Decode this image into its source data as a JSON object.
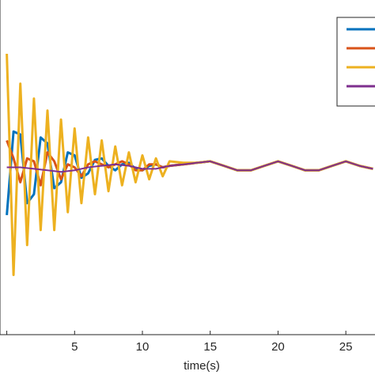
{
  "chart_data": {
    "type": "line",
    "title": "",
    "xlabel": "time(s)",
    "ylabel": "",
    "xlim": [
      -0.5,
      27.5
    ],
    "ylim": [
      -5.6,
      5.6
    ],
    "x_ticks": [
      0,
      5,
      10,
      15,
      20,
      25
    ],
    "x_tick_labels": [
      "",
      "5",
      "10",
      "15",
      "20",
      "25"
    ],
    "grid": false,
    "legend_placement": "top-right",
    "legend_entries": [
      "",
      "",
      "",
      ""
    ],
    "series": [
      {
        "color": "#0072BD",
        "x": [
          0,
          0.5,
          1,
          1.5,
          2,
          2.5,
          3,
          3.5,
          4,
          4.5,
          5,
          5.5,
          6,
          6.5,
          7,
          7.5,
          8,
          8.5,
          9,
          9.5,
          10,
          10.5,
          11,
          11.5,
          12,
          13,
          14,
          15,
          16,
          17,
          18,
          19,
          20,
          21,
          22,
          23,
          24,
          25,
          26,
          27
        ],
        "y": [
          -1.6,
          1.2,
          1.1,
          -1.2,
          -0.9,
          1.0,
          0.8,
          -0.7,
          -0.5,
          0.5,
          0.4,
          -0.35,
          -0.2,
          0.25,
          0.3,
          0.05,
          -0.1,
          0.1,
          0.15,
          -0.05,
          -0.1,
          0.05,
          0.1,
          0.0,
          0.05,
          0.1,
          0.15,
          0.2,
          0.05,
          -0.1,
          -0.1,
          0.05,
          0.2,
          0.05,
          -0.1,
          -0.1,
          0.05,
          0.2,
          0.05,
          -0.05
        ]
      },
      {
        "color": "#D95319",
        "x": [
          0,
          0.5,
          1,
          1.5,
          2,
          2.5,
          3,
          3.5,
          4,
          4.5,
          5,
          5.5,
          6,
          6.5,
          7,
          7.5,
          8,
          8.5,
          9,
          9.5,
          10,
          10.5,
          11,
          11.5,
          12,
          13,
          14,
          15,
          16,
          17,
          18,
          19,
          20,
          21,
          22,
          23,
          24,
          25,
          26,
          27
        ],
        "y": [
          0.9,
          0.3,
          -0.5,
          0.3,
          0.2,
          -0.6,
          0.5,
          0.2,
          -0.4,
          0.1,
          0.0,
          -0.3,
          0.1,
          0.2,
          0.1,
          0.0,
          0.1,
          0.2,
          0.1,
          -0.1,
          -0.1,
          0.1,
          0.1,
          0.0,
          0.05,
          0.1,
          0.15,
          0.2,
          0.05,
          -0.1,
          -0.1,
          0.05,
          0.2,
          0.05,
          -0.1,
          -0.1,
          0.05,
          0.2,
          0.05,
          -0.05
        ]
      },
      {
        "color": "#EDB120",
        "x": [
          0,
          0.5,
          1,
          1.5,
          2,
          2.5,
          3,
          3.5,
          4,
          4.5,
          5,
          5.5,
          6,
          6.5,
          7,
          7.5,
          8,
          8.5,
          9,
          9.5,
          10,
          10.5,
          11,
          11.5,
          12,
          13,
          14,
          15,
          16,
          17,
          18,
          19,
          20,
          21,
          22,
          23,
          24,
          25,
          26,
          27
        ],
        "y": [
          3.8,
          -3.6,
          2.8,
          -2.6,
          2.3,
          -2.1,
          1.9,
          -2.1,
          1.6,
          -1.5,
          1.3,
          -1.2,
          1.0,
          -0.9,
          0.9,
          -0.8,
          0.7,
          -0.6,
          0.5,
          -0.5,
          0.4,
          -0.4,
          0.3,
          -0.3,
          0.2,
          0.15,
          0.15,
          0.2,
          0.05,
          -0.1,
          -0.1,
          0.05,
          0.2,
          0.05,
          -0.1,
          -0.1,
          0.05,
          0.2,
          0.05,
          -0.05
        ]
      },
      {
        "color": "#7E2F8E",
        "x": [
          0,
          1,
          2,
          3,
          4,
          5,
          6,
          7,
          8,
          9,
          10,
          11,
          12,
          13,
          14,
          15,
          16,
          17,
          18,
          19,
          20,
          21,
          22,
          23,
          24,
          25,
          26,
          27
        ],
        "y": [
          0.0,
          0.0,
          -0.05,
          -0.1,
          -0.15,
          -0.1,
          0.0,
          0.05,
          0.1,
          0.05,
          -0.05,
          -0.05,
          0.05,
          0.1,
          0.15,
          0.2,
          0.05,
          -0.1,
          -0.1,
          0.05,
          0.2,
          0.05,
          -0.1,
          -0.1,
          0.05,
          0.2,
          0.05,
          -0.05
        ]
      }
    ]
  }
}
